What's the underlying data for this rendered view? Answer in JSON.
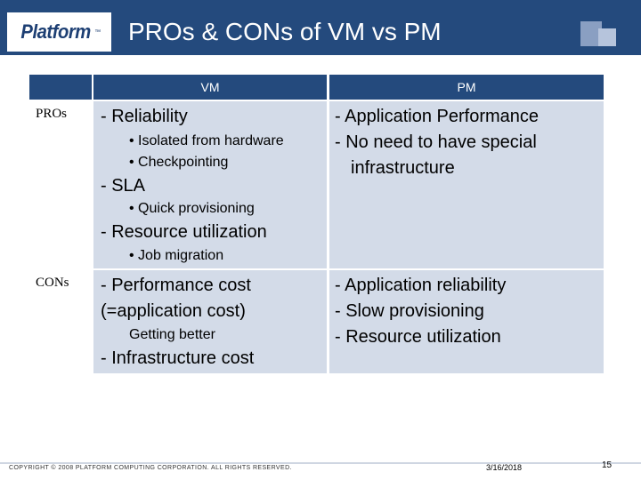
{
  "header": {
    "logo_text": "Platform",
    "logo_tm": "™",
    "title": "PROs & CONs of VM vs PM"
  },
  "table": {
    "col_headers": {
      "vm": "VM",
      "pm": "PM"
    },
    "rows": {
      "pros": {
        "label": "PROs",
        "vm": {
          "reliability": "- Reliability",
          "isolated": "• Isolated from hardware",
          "checkpointing": "• Checkpointing",
          "sla": "- SLA",
          "quick_prov": "• Quick provisioning",
          "resource_util": "- Resource utilization",
          "job_migration": "• Job migration"
        },
        "pm": {
          "app_perf": "- Application Performance",
          "no_need": "- No need to have special",
          "infrastructure": "infrastructure"
        }
      },
      "cons": {
        "label": "CONs",
        "vm": {
          "perf_cost": "- Performance cost",
          "app_cost": "(=application cost)",
          "getting_better": "Getting better",
          "infra_cost": "- Infrastructure cost"
        },
        "pm": {
          "app_reliability": "- Application reliability",
          "slow_prov": "- Slow provisioning",
          "resource_util": "- Resource utilization"
        }
      }
    }
  },
  "footer": {
    "copyright": "Copyright © 2008 Platform Computing Corporation. All Rights Reserved.",
    "date": "3/16/2018",
    "page_number": "15"
  },
  "colors": {
    "header_bg": "#244a7d",
    "cell_bg": "#d3dbe8"
  }
}
